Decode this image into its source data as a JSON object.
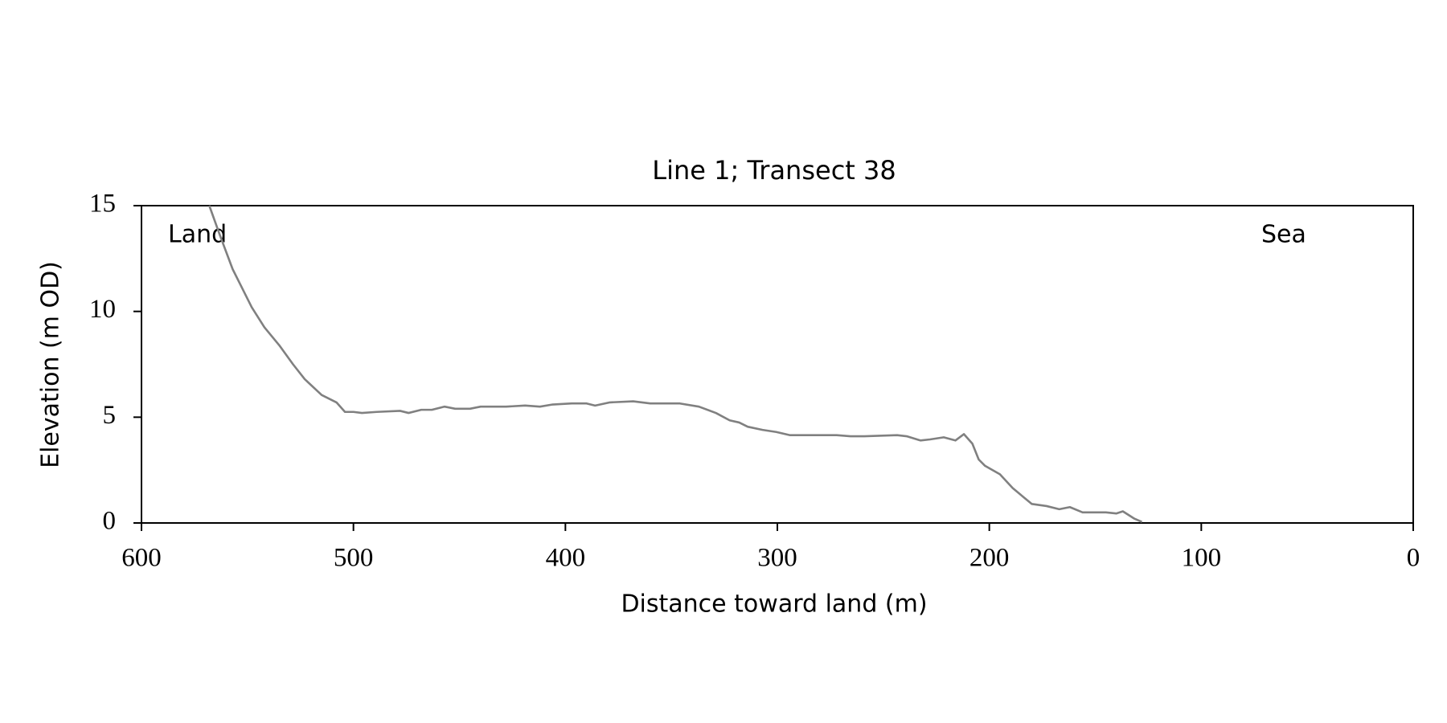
{
  "chart_data": {
    "type": "line",
    "title": "Line 1; Transect 38",
    "xlabel": "Distance toward land (m)",
    "ylabel": "Elevation (m OD)",
    "annotations": [
      "Land",
      "Sea"
    ],
    "xlim": [
      600,
      0
    ],
    "xticks": [
      600,
      500,
      400,
      300,
      200,
      100,
      0
    ],
    "ylim": [
      0,
      15
    ],
    "yticks": [
      0,
      5,
      10,
      15
    ],
    "grid": false,
    "series": [
      {
        "color": "#808080",
        "x": [
          568,
          563,
          557,
          553.5,
          548,
          542,
          535,
          528.5,
          523,
          515,
          508,
          504,
          500,
          496,
          489,
          478,
          474,
          468,
          463,
          457,
          452,
          445,
          440,
          428,
          419,
          412,
          406,
          397,
          390,
          386,
          379,
          368,
          360,
          346,
          337,
          329,
          322.5,
          318,
          314,
          307,
          300.5,
          294,
          285,
          272,
          265.5,
          259,
          243.5,
          239,
          232.5,
          228,
          221.5,
          216,
          212,
          208,
          205,
          202,
          195,
          189,
          180,
          173,
          167,
          162,
          156,
          145,
          140,
          137,
          131.5,
          128
        ],
        "values": [
          15,
          13.6,
          12.0,
          11.3,
          10.2,
          9.25,
          8.4,
          7.5,
          6.8,
          6.05,
          5.7,
          5.25,
          5.25,
          5.2,
          5.25,
          5.3,
          5.2,
          5.35,
          5.35,
          5.5,
          5.4,
          5.4,
          5.5,
          5.5,
          5.55,
          5.5,
          5.6,
          5.65,
          5.65,
          5.55,
          5.7,
          5.75,
          5.65,
          5.65,
          5.5,
          5.2,
          4.85,
          4.75,
          4.55,
          4.4,
          4.3,
          4.15,
          4.15,
          4.15,
          4.1,
          4.1,
          4.15,
          4.1,
          3.9,
          3.95,
          4.05,
          3.9,
          4.2,
          3.75,
          3.0,
          2.7,
          2.3,
          1.65,
          0.9,
          0.8,
          0.65,
          0.75,
          0.5,
          0.5,
          0.45,
          0.55,
          0.2,
          0.05
        ]
      }
    ]
  }
}
